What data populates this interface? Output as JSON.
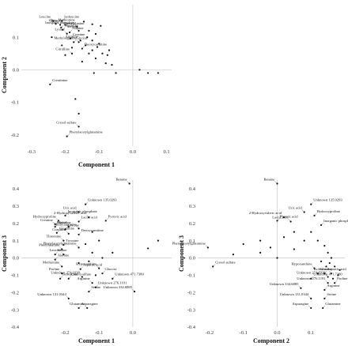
{
  "chart_data": [
    {
      "type": "scatter",
      "xlabel": "Component 1",
      "ylabel": "Component 2",
      "xlim": [
        -0.33,
        0.115
      ],
      "ylim": [
        -0.235,
        0.2
      ],
      "xticks": [
        -0.3,
        -0.2,
        -0.1,
        0.0,
        0.1
      ],
      "xtick_labels": [
        "-0.3",
        "-0.2",
        "-0.1",
        "0.0",
        "0.1"
      ],
      "yticks": [
        -0.2,
        -0.1,
        0.0,
        0.1
      ],
      "ytick_labels": [
        "-0.2",
        "-0.1",
        "0.0",
        "0.1"
      ],
      "points": [
        {
          "x": -0.236,
          "y": 0.15,
          "label": "Leucine"
        },
        {
          "x": -0.21,
          "y": 0.15,
          "label": "Isoleucine"
        },
        {
          "x": -0.2,
          "y": 0.138,
          "label": "Tyrosine"
        },
        {
          "x": -0.228,
          "y": 0.141,
          "label": "Methionine"
        },
        {
          "x": -0.215,
          "y": 0.138,
          "label": "Valine"
        },
        {
          "x": -0.212,
          "y": 0.13,
          "label": "Phenylalanine"
        },
        {
          "x": -0.165,
          "y": 0.132,
          "label": "Inorganic phosphate"
        },
        {
          "x": -0.208,
          "y": 0.123,
          "label": "Histidine"
        },
        {
          "x": -0.16,
          "y": 0.12,
          "label": "Serine"
        },
        {
          "x": -0.187,
          "y": 0.115,
          "label": "Alanine"
        },
        {
          "x": -0.195,
          "y": 0.111,
          "label": "Lysine"
        },
        {
          "x": -0.185,
          "y": 0.096,
          "label": "Creatine"
        },
        {
          "x": -0.155,
          "y": 0.09,
          "label": "Arginine"
        },
        {
          "x": -0.175,
          "y": 0.085,
          "label": "Glycine"
        },
        {
          "x": -0.16,
          "y": 0.085,
          "label": "Methylarginine"
        },
        {
          "x": -0.15,
          "y": 0.065,
          "label": "Deoxycarnitine"
        },
        {
          "x": -0.18,
          "y": 0.05,
          "label": "Citrulline"
        },
        {
          "x": -0.245,
          "y": -0.045,
          "label": "Creatinine"
        },
        {
          "x": -0.16,
          "y": -0.175,
          "label": "Cresol sulfate"
        },
        {
          "x": -0.195,
          "y": -0.205,
          "label": "Phenylacetylglutamine"
        },
        {
          "x": -0.12,
          "y": 0.14,
          "label": ""
        },
        {
          "x": -0.13,
          "y": 0.12,
          "label": ""
        },
        {
          "x": -0.11,
          "y": 0.11,
          "label": ""
        },
        {
          "x": -0.135,
          "y": 0.1,
          "label": ""
        },
        {
          "x": -0.12,
          "y": 0.09,
          "label": ""
        },
        {
          "x": -0.1,
          "y": 0.08,
          "label": ""
        },
        {
          "x": -0.14,
          "y": 0.075,
          "label": ""
        },
        {
          "x": -0.105,
          "y": 0.07,
          "label": ""
        },
        {
          "x": -0.12,
          "y": 0.06,
          "label": ""
        },
        {
          "x": -0.09,
          "y": 0.05,
          "label": ""
        },
        {
          "x": -0.13,
          "y": 0.05,
          "label": ""
        },
        {
          "x": -0.075,
          "y": 0.045,
          "label": ""
        },
        {
          "x": -0.07,
          "y": 0.06,
          "label": ""
        },
        {
          "x": -0.11,
          "y": 0.035,
          "label": ""
        },
        {
          "x": -0.08,
          "y": 0.02,
          "label": ""
        },
        {
          "x": -0.05,
          "y": -0.01,
          "label": ""
        },
        {
          "x": -0.15,
          "y": 0.025,
          "label": ""
        },
        {
          "x": -0.115,
          "y": -0.01,
          "label": ""
        },
        {
          "x": -0.18,
          "y": 0.068,
          "label": ""
        },
        {
          "x": -0.24,
          "y": 0.1,
          "label": ""
        },
        {
          "x": -0.21,
          "y": 0.075,
          "label": ""
        },
        {
          "x": -0.145,
          "y": 0.148,
          "label": ""
        },
        {
          "x": -0.16,
          "y": -0.135,
          "label": ""
        },
        {
          "x": -0.17,
          "y": -0.09,
          "label": ""
        },
        {
          "x": -0.062,
          "y": 0.015,
          "label": ""
        },
        {
          "x": -0.095,
          "y": 0.135,
          "label": ""
        },
        {
          "x": 0.045,
          "y": -0.01,
          "label": ""
        },
        {
          "x": 0.075,
          "y": -0.01,
          "label": ""
        },
        {
          "x": 0.02,
          "y": 0.0,
          "label": ""
        },
        {
          "x": -0.2,
          "y": 0.045,
          "label": ""
        }
      ]
    },
    {
      "type": "scatter",
      "xlabel": "Component 1",
      "ylabel": "Component 3",
      "xlim": [
        -0.33,
        0.115
      ],
      "ylim": [
        -0.4,
        0.45
      ],
      "xticks": [
        -0.2,
        -0.1,
        0.0
      ],
      "xtick_labels": [
        "-0.2",
        "-0.1",
        "0.0"
      ],
      "yticks": [
        -0.4,
        -0.3,
        -0.2,
        -0.1,
        0.0,
        0.1,
        0.2,
        0.3,
        0.4
      ],
      "ytick_labels": [
        "-0.4",
        "-0.3",
        "-0.2",
        "-0.1",
        "0.0",
        "0.1",
        "0.2",
        "0.3",
        "0.4"
      ],
      "points": [
        {
          "x": -0.01,
          "y": 0.43,
          "label": "Betaine"
        },
        {
          "x": -0.14,
          "y": 0.31,
          "label": "Unknown 135.0293"
        },
        {
          "x": -0.16,
          "y": 0.265,
          "label": "Uric acid"
        },
        {
          "x": -0.2,
          "y": 0.245,
          "label": "Inorganic phosphate"
        },
        {
          "x": -0.13,
          "y": 0.235,
          "label": "2-Hydroxyvaleric acid"
        },
        {
          "x": -0.08,
          "y": 0.215,
          "label": "Pyruvic acid"
        },
        {
          "x": -0.22,
          "y": 0.215,
          "label": "Hydroxyproline"
        },
        {
          "x": -0.16,
          "y": 0.21,
          "label": "Lactic acid"
        },
        {
          "x": -0.23,
          "y": 0.195,
          "label": "Creatine"
        },
        {
          "x": -0.23,
          "y": 0.18,
          "label": "Histidine"
        },
        {
          "x": -0.19,
          "y": 0.18,
          "label": "Lysine"
        },
        {
          "x": -0.2,
          "y": 0.165,
          "label": "Glycine"
        },
        {
          "x": -0.16,
          "y": 0.17,
          "label": "Methylarginine"
        },
        {
          "x": -0.225,
          "y": 0.145,
          "label": "Creatinine"
        },
        {
          "x": -0.19,
          "y": 0.14,
          "label": "Citrulline"
        },
        {
          "x": -0.16,
          "y": 0.135,
          "label": "Deoxycarnitine"
        },
        {
          "x": -0.205,
          "y": 0.1,
          "label": "Threonine"
        },
        {
          "x": -0.205,
          "y": 0.075,
          "label": "Tyrosine"
        },
        {
          "x": -0.21,
          "y": 0.05,
          "label": "Phenylalanine"
        },
        {
          "x": -0.23,
          "y": 0.02,
          "label": "Valine"
        },
        {
          "x": -0.205,
          "y": 0.02,
          "label": "Leucine"
        },
        {
          "x": -0.23,
          "y": -0.01,
          "label": "Alanine"
        },
        {
          "x": -0.21,
          "y": -0.05,
          "label": "Methionine"
        },
        {
          "x": -0.155,
          "y": -0.065,
          "label": "Aspartic acid"
        },
        {
          "x": -0.1,
          "y": -0.06,
          "label": "Hypoxanthine"
        },
        {
          "x": -0.09,
          "y": -0.09,
          "label": "Glucose"
        },
        {
          "x": -0.21,
          "y": -0.09,
          "label": "Proline"
        },
        {
          "x": -0.215,
          "y": -0.12,
          "label": "Isoleucine"
        },
        {
          "x": -0.15,
          "y": -0.11,
          "label": "Unknown 274.1038"
        },
        {
          "x": -0.06,
          "y": -0.12,
          "label": "Unknown 471.7380"
        },
        {
          "x": -0.12,
          "y": -0.145,
          "label": "Arginine"
        },
        {
          "x": -0.11,
          "y": -0.17,
          "label": "Unknown 276.1191"
        },
        {
          "x": 0.005,
          "y": -0.195,
          "label": "Unknown 334.6885"
        },
        {
          "x": -0.13,
          "y": -0.195,
          "label": "Serine"
        },
        {
          "x": -0.19,
          "y": -0.235,
          "label": "Unknown 131.0344"
        },
        {
          "x": -0.16,
          "y": -0.29,
          "label": "Asparagine"
        },
        {
          "x": -0.135,
          "y": -0.29,
          "label": "Glutamine"
        },
        {
          "x": -0.19,
          "y": -0.12,
          "label": "Cresol sulfate"
        },
        {
          "x": -0.16,
          "y": 0.06,
          "label": "Phenylacetylglutamine"
        },
        {
          "x": 0.045,
          "y": 0.055,
          "label": ""
        },
        {
          "x": 0.075,
          "y": 0.1,
          "label": ""
        },
        {
          "x": -0.06,
          "y": 0.03,
          "label": ""
        },
        {
          "x": -0.12,
          "y": 0.15,
          "label": ""
        },
        {
          "x": -0.1,
          "y": 0.1,
          "label": ""
        },
        {
          "x": -0.14,
          "y": 0.08,
          "label": ""
        },
        {
          "x": -0.12,
          "y": 0.03,
          "label": ""
        },
        {
          "x": -0.09,
          "y": 0.0,
          "label": ""
        },
        {
          "x": -0.13,
          "y": -0.02,
          "label": ""
        },
        {
          "x": -0.16,
          "y": -0.03,
          "label": ""
        },
        {
          "x": -0.11,
          "y": -0.1,
          "label": ""
        }
      ]
    },
    {
      "type": "scatter",
      "xlabel": "Component 2",
      "ylabel": "Component 3",
      "xlim": [
        -0.235,
        0.2
      ],
      "ylim": [
        -0.4,
        0.45
      ],
      "xticks": [
        -0.2,
        -0.1,
        0.0,
        0.1
      ],
      "xtick_labels": [
        "-0.2",
        "-0.1",
        "0.0",
        "0.1"
      ],
      "yticks": [
        -0.4,
        -0.3,
        -0.2,
        -0.1,
        0.0,
        0.1,
        0.2,
        0.3,
        0.4
      ],
      "ytick_labels": [
        "-0.4",
        "-0.3",
        "-0.2",
        "-0.1",
        "0.0",
        "0.1",
        "0.2",
        "0.3",
        "0.4"
      ],
      "points": [
        {
          "x": 0.0,
          "y": 0.43,
          "label": "Betaine"
        },
        {
          "x": 0.1,
          "y": 0.31,
          "label": "Unknown 135.0293"
        },
        {
          "x": 0.08,
          "y": 0.265,
          "label": "Uric acid"
        },
        {
          "x": 0.11,
          "y": 0.245,
          "label": "Hydroxyproline"
        },
        {
          "x": 0.02,
          "y": 0.235,
          "label": "2-Hydroxyvaleric acid"
        },
        {
          "x": 0.0,
          "y": 0.215,
          "label": "Pyruvic acid"
        },
        {
          "x": 0.04,
          "y": 0.21,
          "label": "Lactic acid"
        },
        {
          "x": 0.13,
          "y": 0.19,
          "label": "Inorganic phosphate"
        },
        {
          "x": -0.205,
          "y": 0.06,
          "label": "Phenylacetylglutamine"
        },
        {
          "x": -0.19,
          "y": -0.05,
          "label": "Cresol sulfate"
        },
        {
          "x": 0.11,
          "y": -0.06,
          "label": "Hypoxanthine"
        },
        {
          "x": 0.14,
          "y": -0.09,
          "label": "Aspartic acid"
        },
        {
          "x": 0.16,
          "y": -0.09,
          "label": "Isoleucine"
        },
        {
          "x": 0.12,
          "y": -0.09,
          "label": "Glucose"
        },
        {
          "x": 0.15,
          "y": -0.11,
          "label": "Unknown 274.1038"
        },
        {
          "x": 0.1,
          "y": -0.12,
          "label": "Unknown 471.7380"
        },
        {
          "x": 0.15,
          "y": -0.145,
          "label": "Unknown 276.1191"
        },
        {
          "x": 0.17,
          "y": -0.145,
          "label": "Proline"
        },
        {
          "x": 0.07,
          "y": -0.175,
          "label": "Unknown 334.6885"
        },
        {
          "x": 0.14,
          "y": -0.185,
          "label": "Arginine"
        },
        {
          "x": 0.1,
          "y": -0.235,
          "label": "Unknown 131.0344"
        },
        {
          "x": 0.14,
          "y": -0.235,
          "label": "Serine"
        },
        {
          "x": 0.1,
          "y": -0.29,
          "label": "Asparagine"
        },
        {
          "x": 0.135,
          "y": -0.29,
          "label": "Glutamine"
        },
        {
          "x": -0.13,
          "y": 0.02,
          "label": ""
        },
        {
          "x": -0.1,
          "y": 0.08,
          "label": ""
        },
        {
          "x": -0.05,
          "y": 0.1,
          "label": ""
        },
        {
          "x": -0.02,
          "y": 0.06,
          "label": ""
        },
        {
          "x": 0.02,
          "y": 0.12,
          "label": ""
        },
        {
          "x": 0.05,
          "y": 0.05,
          "label": ""
        },
        {
          "x": 0.08,
          "y": 0.1,
          "label": ""
        },
        {
          "x": 0.1,
          "y": 0.15,
          "label": ""
        },
        {
          "x": 0.12,
          "y": 0.1,
          "label": ""
        },
        {
          "x": 0.14,
          "y": 0.07,
          "label": ""
        },
        {
          "x": 0.15,
          "y": 0.03,
          "label": ""
        },
        {
          "x": 0.16,
          "y": 0.0,
          "label": ""
        },
        {
          "x": 0.155,
          "y": -0.03,
          "label": ""
        },
        {
          "x": 0.17,
          "y": -0.05,
          "label": ""
        },
        {
          "x": 0.13,
          "y": -0.02,
          "label": ""
        },
        {
          "x": 0.18,
          "y": -0.1,
          "label": ""
        },
        {
          "x": 0.165,
          "y": -0.12,
          "label": ""
        },
        {
          "x": 0.185,
          "y": -0.07,
          "label": ""
        },
        {
          "x": 0.145,
          "y": -0.05,
          "label": ""
        },
        {
          "x": 0.05,
          "y": 0.15,
          "label": ""
        },
        {
          "x": -0.05,
          "y": 0.03,
          "label": ""
        },
        {
          "x": 0.0,
          "y": 0.0,
          "label": ""
        }
      ]
    }
  ]
}
